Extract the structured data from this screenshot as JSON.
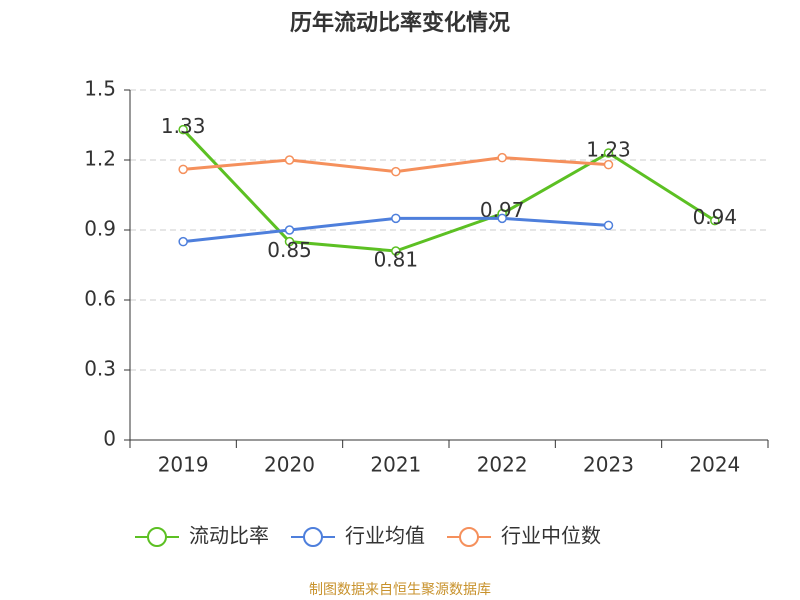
{
  "chart_data": {
    "type": "line",
    "title": "历年流动比率变化情况",
    "categories": [
      "2019",
      "2020",
      "2021",
      "2022",
      "2023",
      "2024"
    ],
    "series": [
      {
        "name": "流动比率",
        "color": "#5cc023",
        "values": [
          1.33,
          0.85,
          0.81,
          0.97,
          1.23,
          0.94
        ],
        "show_labels": true
      },
      {
        "name": "行业均值",
        "color": "#4e7fdc",
        "values": [
          0.85,
          0.9,
          0.95,
          0.95,
          0.92,
          null
        ]
      },
      {
        "name": "行业中位数",
        "color": "#f5905c",
        "values": [
          1.16,
          1.2,
          1.15,
          1.21,
          1.18,
          null
        ]
      }
    ],
    "ylim": [
      0,
      1.5
    ],
    "yticks": [
      0,
      0.3,
      0.6,
      0.9,
      1.2,
      1.5
    ],
    "grid": true,
    "source": "制图数据来自恒生聚源数据库"
  }
}
